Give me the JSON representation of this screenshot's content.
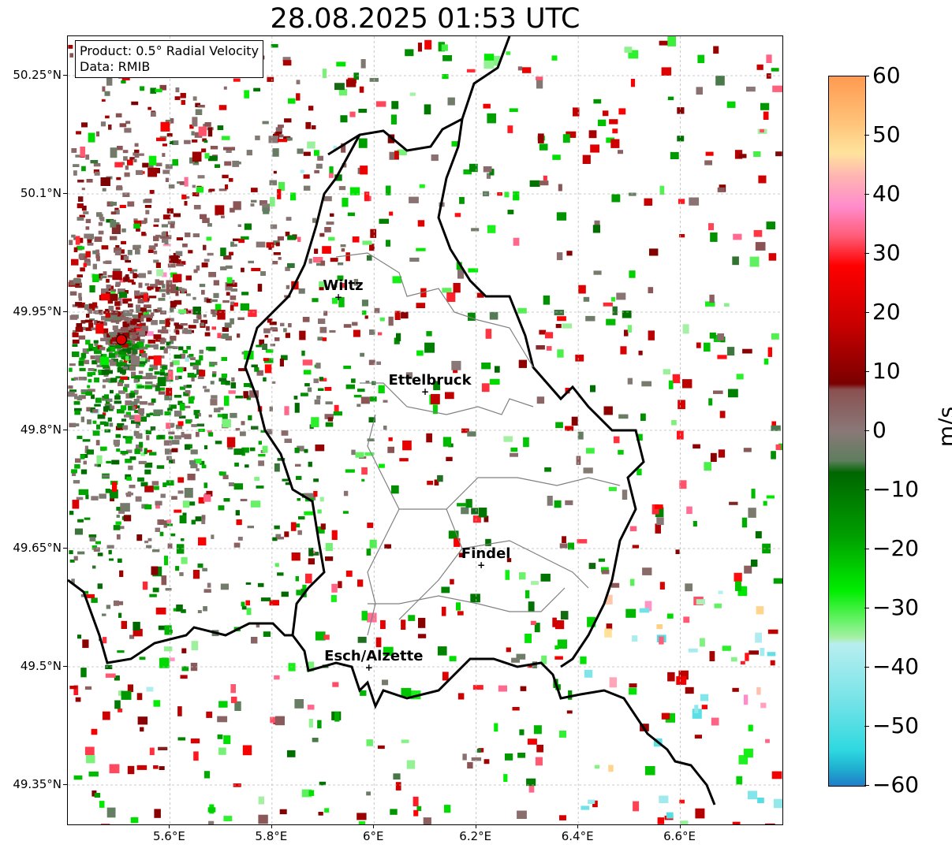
{
  "title": "28.08.2025 01:53 UTC",
  "info": {
    "product": "Product: 0.5° Radial Velocity",
    "data": "Data: RMIB"
  },
  "axes": {
    "lat_ticks": [
      {
        "label": "50.25°N",
        "value": 50.25
      },
      {
        "label": "50.1°N",
        "value": 50.1
      },
      {
        "label": "49.95°N",
        "value": 49.95
      },
      {
        "label": "49.8°N",
        "value": 49.8
      },
      {
        "label": "49.65°N",
        "value": 49.65
      },
      {
        "label": "49.5°N",
        "value": 49.5
      },
      {
        "label": "49.35°N",
        "value": 49.35
      }
    ],
    "lon_ticks": [
      {
        "label": "5.6°E",
        "value": 5.6
      },
      {
        "label": "5.8°E",
        "value": 5.8
      },
      {
        "label": "6°E",
        "value": 6.0
      },
      {
        "label": "6.2°E",
        "value": 6.2
      },
      {
        "label": "6.4°E",
        "value": 6.4
      },
      {
        "label": "6.6°E",
        "value": 6.6
      }
    ],
    "lon_range": [
      5.4,
      6.8
    ],
    "lat_range": [
      49.3,
      50.3
    ]
  },
  "cities": [
    {
      "name": "Wiltz",
      "lon": 5.93,
      "lat": 49.97
    },
    {
      "name": "Ettelbruck",
      "lon": 6.1,
      "lat": 49.85
    },
    {
      "name": "Findel",
      "lon": 6.21,
      "lat": 49.63
    },
    {
      "name": "Esch/Alzette",
      "lon": 5.99,
      "lat": 49.5
    }
  ],
  "radar_site": {
    "lon": 5.505,
    "lat": 49.915,
    "color": "#e00000"
  },
  "colorbar": {
    "unit": "m/s",
    "range": [
      -60,
      60
    ],
    "ticks": [
      "60",
      "50",
      "40",
      "30",
      "20",
      "10",
      "0",
      "−10",
      "−20",
      "−30",
      "−40",
      "−50",
      "−60"
    ],
    "tick_values": [
      60,
      50,
      40,
      30,
      20,
      10,
      0,
      -10,
      -20,
      -30,
      -40,
      -50,
      -60
    ],
    "stops": [
      {
        "v": 60,
        "color": "#ff9a50"
      },
      {
        "v": 52,
        "color": "#ffc47a"
      },
      {
        "v": 47,
        "color": "#ffe39c"
      },
      {
        "v": 43,
        "color": "#ffb3b3"
      },
      {
        "v": 38,
        "color": "#ff8ccc"
      },
      {
        "v": 33,
        "color": "#ff5c77"
      },
      {
        "v": 28,
        "color": "#ff0000"
      },
      {
        "v": 18,
        "color": "#c80000"
      },
      {
        "v": 8,
        "color": "#7a0000"
      },
      {
        "v": 7,
        "color": "#8a5050"
      },
      {
        "v": 0,
        "color": "#8a7878"
      },
      {
        "v": -5,
        "color": "#5e7e5e"
      },
      {
        "v": -7,
        "color": "#006600"
      },
      {
        "v": -18,
        "color": "#00a000"
      },
      {
        "v": -27,
        "color": "#00ee00"
      },
      {
        "v": -33,
        "color": "#7cf27c"
      },
      {
        "v": -35,
        "color": "#a8f0a8"
      },
      {
        "v": -36,
        "color": "#b8eef0"
      },
      {
        "v": -45,
        "color": "#7ae4e8"
      },
      {
        "v": -54,
        "color": "#2ed8e0"
      },
      {
        "v": -57,
        "color": "#1fb0d0"
      },
      {
        "v": -60,
        "color": "#1f7ec8"
      }
    ]
  }
}
